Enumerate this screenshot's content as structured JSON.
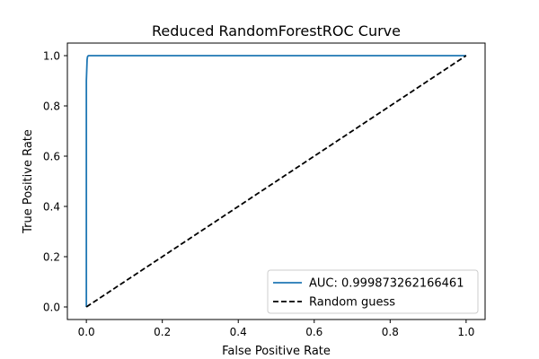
{
  "chart_data": {
    "type": "line",
    "title": "Reduced RandomForestROC Curve",
    "xlabel": "False Positive Rate",
    "ylabel": "True Positive Rate",
    "xlim": [
      -0.05,
      1.05
    ],
    "ylim": [
      -0.05,
      1.05
    ],
    "xticks": [
      "0.0",
      "0.2",
      "0.4",
      "0.6",
      "0.8",
      "1.0"
    ],
    "yticks": [
      "0.0",
      "0.2",
      "0.4",
      "0.6",
      "0.8",
      "1.0"
    ],
    "grid": false,
    "legend_position": "lower-right",
    "series": [
      {
        "name": "AUC: 0.999873262166461",
        "color": "#1f77b4",
        "style": "solid",
        "x": [
          0.0,
          0.0,
          0.002,
          0.003,
          0.004,
          0.006,
          1.0
        ],
        "y": [
          0.0,
          0.9,
          0.985,
          0.995,
          0.998,
          1.0,
          1.0
        ]
      },
      {
        "name": "Random guess",
        "color": "#000000",
        "style": "dashed",
        "x": [
          0.0,
          1.0
        ],
        "y": [
          0.0,
          1.0
        ]
      }
    ]
  }
}
